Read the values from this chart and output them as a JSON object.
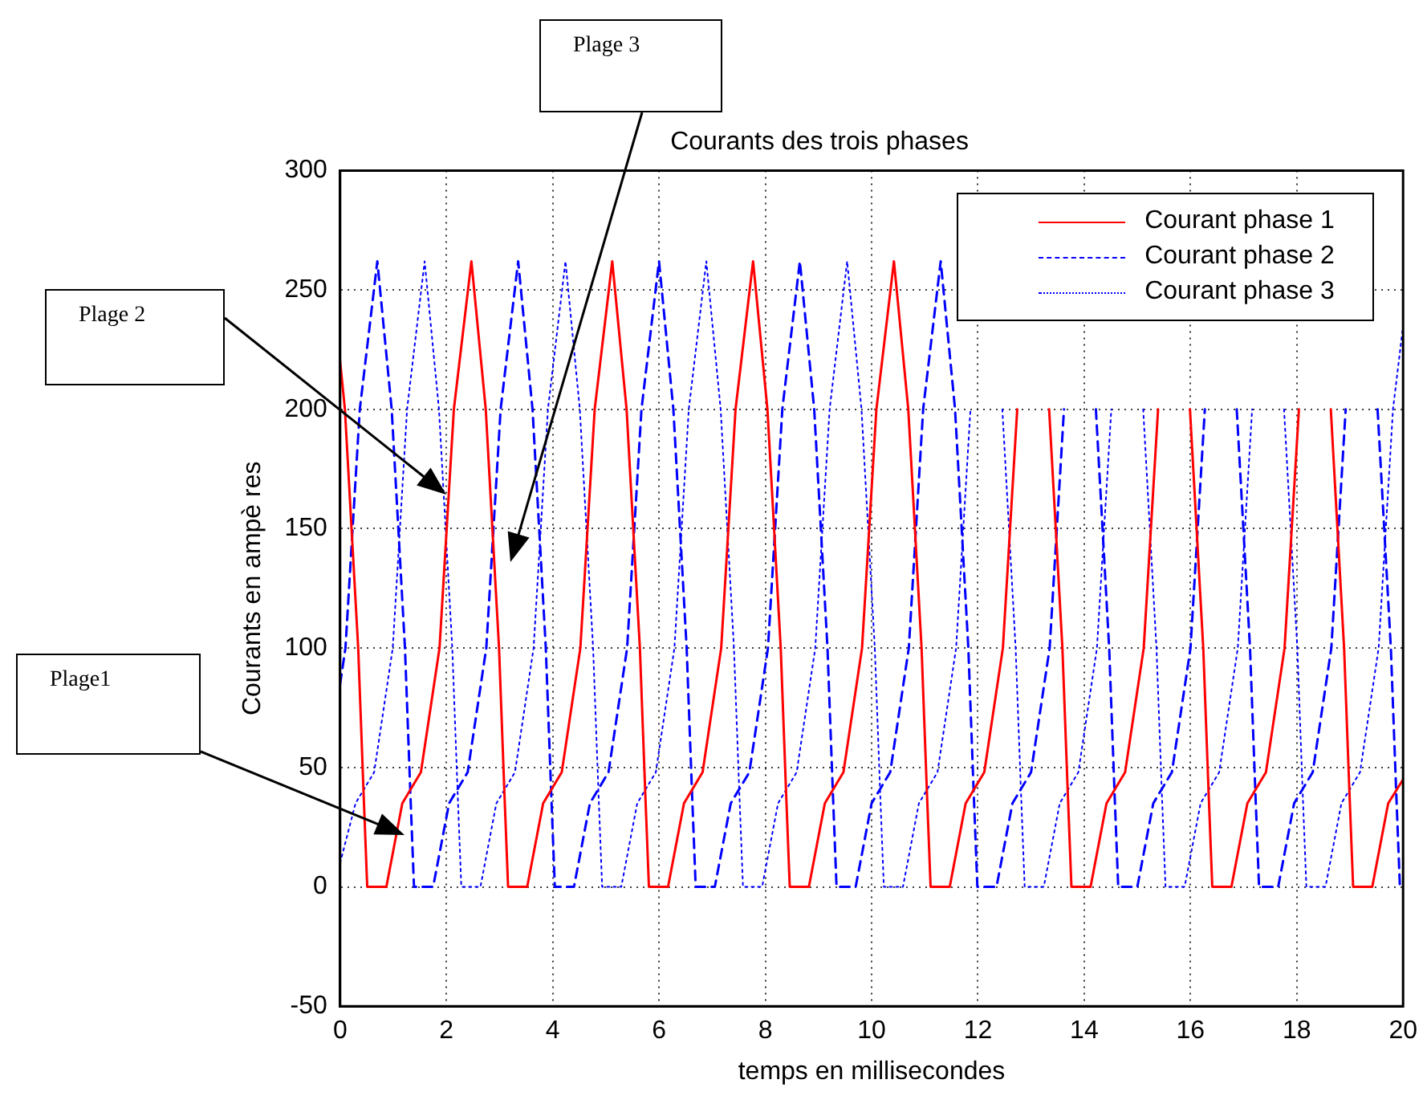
{
  "chart_data": {
    "type": "line",
    "title": "Courants des trois phases",
    "xlabel": "temps en millisecondes",
    "ylabel": "Courants en ampè res",
    "xlim": [
      0,
      20
    ],
    "xticks": [
      0,
      2,
      4,
      6,
      8,
      10,
      12,
      14,
      16,
      18,
      20
    ],
    "ylim": [
      -50,
      300
    ],
    "yticks": [
      -50,
      0,
      50,
      100,
      150,
      200,
      250,
      300
    ],
    "grid": true,
    "legend": "top right",
    "marker": "none",
    "annotations": [
      "Plage 3",
      "Plage 2",
      "Plage1"
    ],
    "series": [
      {
        "name": "Courant phase 1",
        "color": "#ff0000",
        "line_style": "solid",
        "x": [
          0,
          0.09,
          0.34,
          0.44,
          0.51,
          0.87,
          1.17,
          1.52,
          1.87,
          2.14,
          2.47,
          2.74,
          2.99,
          3.09,
          3.16,
          3.52,
          3.82,
          4.17,
          4.52,
          4.79,
          5.12,
          5.39,
          5.64,
          5.74,
          5.81,
          6.17,
          6.47,
          6.82,
          7.17,
          7.44,
          7.77,
          8.04,
          8.29,
          8.39,
          8.46,
          8.82,
          9.12,
          9.47,
          9.82,
          10.09,
          10.42,
          10.69,
          10.94,
          11.04,
          11.11,
          11.47,
          11.77,
          12.12,
          12.47,
          12.74,
          13.07,
          13.34,
          13.59,
          13.69,
          13.76,
          14.12,
          14.42,
          14.77,
          15.12,
          15.39,
          15.72,
          15.99,
          16.24,
          16.34,
          16.41,
          16.77,
          17.07,
          17.42,
          17.77,
          18.04,
          18.37,
          18.64,
          18.89,
          18.99,
          19.06,
          19.42,
          19.72,
          20
        ],
        "values": [
          220,
          200,
          100,
          40,
          0,
          0,
          35,
          48,
          100,
          200,
          262,
          200,
          100,
          40,
          0,
          0,
          35,
          48,
          100,
          200,
          262,
          200,
          100,
          40,
          0,
          0,
          35,
          48,
          100,
          200,
          262,
          200,
          100,
          40,
          0,
          0,
          35,
          48,
          100,
          200,
          262,
          200,
          100,
          40,
          0,
          0,
          35,
          48,
          100,
          200,
          null,
          200,
          100,
          40,
          0,
          0,
          35,
          48,
          100,
          200,
          null,
          200,
          100,
          40,
          0,
          0,
          35,
          48,
          100,
          200,
          null,
          200,
          100,
          40,
          0,
          0,
          35,
          45
        ]
      },
      {
        "name": "Courant phase 2",
        "color": "#0000ff",
        "line_style": "dashed",
        "x": [
          0,
          0.1,
          0.37,
          0.7,
          0.97,
          1.22,
          1.32,
          1.39,
          1.75,
          2.05,
          2.4,
          2.75,
          3.02,
          3.35,
          3.62,
          3.87,
          3.97,
          4.04,
          4.4,
          4.7,
          5.05,
          5.4,
          5.67,
          6,
          6.27,
          6.52,
          6.62,
          6.69,
          7.05,
          7.35,
          7.7,
          8.05,
          8.32,
          8.65,
          8.92,
          9.17,
          9.27,
          9.34,
          9.7,
          10,
          10.35,
          10.7,
          10.97,
          11.3,
          11.57,
          11.82,
          11.92,
          11.99,
          12.35,
          12.65,
          13,
          13.35,
          13.62,
          13.95,
          14.22,
          14.47,
          14.57,
          14.64,
          15,
          15.3,
          15.65,
          16,
          16.27,
          16.6,
          16.87,
          17.12,
          17.22,
          17.29,
          17.65,
          17.95,
          18.3,
          18.65,
          18.92,
          19.25,
          19.52,
          19.77,
          19.87,
          19.94,
          20
        ],
        "values": [
          85,
          100,
          200,
          262,
          200,
          100,
          40,
          0,
          0,
          35,
          48,
          100,
          200,
          262,
          200,
          100,
          40,
          0,
          0,
          35,
          48,
          100,
          200,
          262,
          200,
          100,
          40,
          0,
          0,
          35,
          48,
          100,
          200,
          262,
          200,
          100,
          40,
          0,
          0,
          35,
          48,
          100,
          200,
          262,
          200,
          100,
          40,
          0,
          0,
          35,
          48,
          100,
          200,
          null,
          200,
          100,
          40,
          0,
          0,
          35,
          48,
          100,
          200,
          null,
          200,
          100,
          40,
          0,
          0,
          35,
          48,
          100,
          200,
          null,
          200,
          100,
          40,
          0,
          0
        ]
      },
      {
        "name": "Courant phase 3",
        "color": "#0000ff",
        "line_style": "dotted",
        "x": [
          0,
          0.29,
          0.64,
          0.99,
          1.26,
          1.59,
          1.86,
          2.11,
          2.21,
          2.28,
          2.64,
          2.94,
          3.29,
          3.64,
          3.91,
          4.24,
          4.51,
          4.76,
          4.86,
          4.93,
          5.29,
          5.59,
          5.94,
          6.29,
          6.56,
          6.89,
          7.16,
          7.41,
          7.51,
          7.58,
          7.94,
          8.24,
          8.59,
          8.94,
          9.21,
          9.54,
          9.81,
          10.06,
          10.16,
          10.23,
          10.59,
          10.89,
          11.24,
          11.59,
          11.86,
          12.19,
          12.46,
          12.71,
          12.81,
          12.88,
          13.24,
          13.54,
          13.89,
          14.24,
          14.51,
          14.84,
          15.11,
          15.36,
          15.46,
          15.53,
          15.89,
          16.19,
          16.54,
          16.89,
          17.16,
          17.49,
          17.76,
          18.01,
          18.11,
          18.18,
          18.54,
          18.84,
          19.19,
          19.54,
          19.81,
          20
        ],
        "values": [
          10,
          35,
          48,
          100,
          200,
          262,
          200,
          100,
          40,
          0,
          0,
          35,
          48,
          100,
          200,
          262,
          200,
          100,
          40,
          0,
          0,
          35,
          48,
          100,
          200,
          262,
          200,
          100,
          40,
          0,
          0,
          35,
          48,
          100,
          200,
          262,
          200,
          100,
          40,
          0,
          0,
          35,
          48,
          100,
          200,
          null,
          200,
          100,
          40,
          0,
          0,
          35,
          48,
          100,
          200,
          null,
          200,
          100,
          40,
          0,
          0,
          35,
          48,
          100,
          200,
          null,
          200,
          100,
          40,
          0,
          0,
          35,
          48,
          100,
          200,
          235
        ]
      }
    ]
  }
}
